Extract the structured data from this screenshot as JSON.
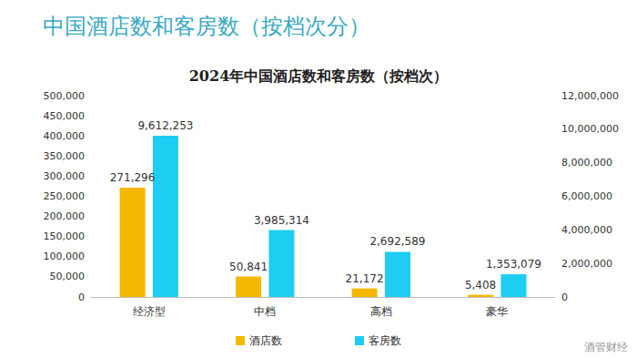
{
  "chart_data": {
    "type": "bar",
    "heading": "中国酒店数和客房数（按档次分）",
    "title": "2024年中国酒店数和客房数（按档次）",
    "annotations": [
      "酒管财经"
    ],
    "categories": [
      "经济型",
      "中档",
      "高档",
      "豪华"
    ],
    "series": [
      {
        "name": "酒店数",
        "color": "#F5B800",
        "axis": "y",
        "values": [
          271296,
          50841,
          21172,
          5408
        ],
        "value_labels": [
          "271,296",
          "50,841",
          "21,172",
          "5,408"
        ]
      },
      {
        "name": "客房数",
        "color": "#1DCDF2",
        "axis": "y2",
        "values": [
          9612253,
          3985314,
          2692589,
          1353079
        ],
        "value_labels": [
          "9,612,253",
          "3,985,314",
          "2,692,589",
          "1,353,079"
        ]
      }
    ],
    "ylim": [
      0,
      500000
    ],
    "yticks": [
      0,
      {
        "value": 50000,
        "label": "50,000"
      },
      {
        "value": 100000,
        "label": "100,000"
      },
      {
        "value": 150000,
        "label": "150,000"
      },
      {
        "value": 200000,
        "label": "200,000"
      },
      {
        "value": 250000,
        "label": "250,000"
      },
      {
        "value": 300000,
        "label": "300,000"
      },
      {
        "value": 350000,
        "label": "350,000"
      },
      {
        "value": 400000,
        "label": "400,000"
      },
      {
        "value": 450000,
        "label": "450,000"
      },
      {
        "value": 500000,
        "label": "500,000"
      }
    ],
    "y2lim": [
      0,
      12000000
    ],
    "y2ticks": [
      0,
      {
        "value": 2000000,
        "label": "2,000,000"
      },
      {
        "value": 4000000,
        "label": "4,000,000"
      },
      {
        "value": 6000000,
        "label": "6,000,000"
      },
      {
        "value": 8000000,
        "label": "8,000,000"
      },
      {
        "value": 10000000,
        "label": "10,000,000"
      },
      {
        "value": 12000000,
        "label": "12,000,000"
      }
    ],
    "grid": false,
    "legend": "bottom",
    "data_labels": true
  }
}
